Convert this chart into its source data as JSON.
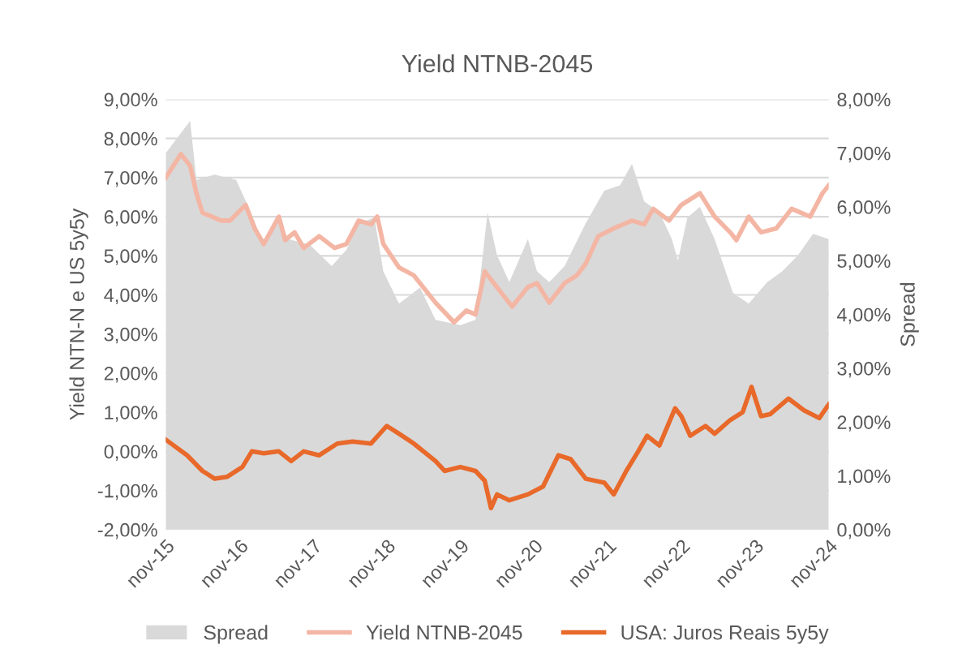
{
  "chart_data": {
    "type": "line",
    "title": "Yield NTNB-2045",
    "ylabel": "Yield NTN-N e US 5y5y",
    "y2label": "Spread",
    "xlim": [
      "2015-11-01",
      "2024-11-01"
    ],
    "xticks": [
      {
        "value": "2015-11-01",
        "label": "nov-15"
      },
      {
        "value": "2016-11-01",
        "label": "nov-16"
      },
      {
        "value": "2017-11-01",
        "label": "nov-17"
      },
      {
        "value": "2018-11-01",
        "label": "nov-18"
      },
      {
        "value": "2019-11-01",
        "label": "nov-19"
      },
      {
        "value": "2020-11-01",
        "label": "nov-20"
      },
      {
        "value": "2021-11-01",
        "label": "nov-21"
      },
      {
        "value": "2022-11-01",
        "label": "nov-22"
      },
      {
        "value": "2023-11-01",
        "label": "nov-23"
      },
      {
        "value": "2024-11-01",
        "label": "nov-24"
      }
    ],
    "ylim": [
      -2,
      9
    ],
    "yticks": [
      {
        "value": -2,
        "label": "-2,00%"
      },
      {
        "value": -1,
        "label": "-1,00%"
      },
      {
        "value": 0,
        "label": "0,00%"
      },
      {
        "value": 1,
        "label": "1,00%"
      },
      {
        "value": 2,
        "label": "2,00%"
      },
      {
        "value": 3,
        "label": "3,00%"
      },
      {
        "value": 4,
        "label": "4,00%"
      },
      {
        "value": 5,
        "label": "5,00%"
      },
      {
        "value": 6,
        "label": "6,00%"
      },
      {
        "value": 7,
        "label": "7,00%"
      },
      {
        "value": 8,
        "label": "8,00%"
      },
      {
        "value": 9,
        "label": "9,00%"
      }
    ],
    "y2lim": [
      0,
      8
    ],
    "y2ticks": [
      {
        "value": 0,
        "label": "0,00%"
      },
      {
        "value": 1,
        "label": "1,00%"
      },
      {
        "value": 2,
        "label": "2,00%"
      },
      {
        "value": 3,
        "label": "3,00%"
      },
      {
        "value": 4,
        "label": "4,00%"
      },
      {
        "value": 5,
        "label": "5,00%"
      },
      {
        "value": 6,
        "label": "6,00%"
      },
      {
        "value": 7,
        "label": "7,00%"
      },
      {
        "value": 8,
        "label": "8,00%"
      }
    ],
    "grid": "y",
    "legend": "bottom",
    "series": [
      {
        "name": "Spread",
        "type": "area",
        "axis": "y2",
        "color": "#d9d9d9",
        "x": [
          "2015-11-01",
          "2016-01-01",
          "2016-03-01",
          "2016-04-01",
          "2016-07-01",
          "2016-10-15",
          "2016-12-15",
          "2017-03-01",
          "2017-05-15",
          "2017-07-01",
          "2017-10-15",
          "2018-02-01",
          "2018-04-15",
          "2018-06-15",
          "2018-09-01",
          "2018-10-15",
          "2019-01-01",
          "2019-04-15",
          "2019-07-01",
          "2019-11-01",
          "2020-01-15",
          "2020-03-15",
          "2020-05-01",
          "2020-07-01",
          "2020-10-01",
          "2020-11-15",
          "2021-01-15",
          "2021-04-01",
          "2021-07-15",
          "2021-10-15",
          "2022-01-01",
          "2022-03-01",
          "2022-05-01",
          "2022-07-15",
          "2022-09-15",
          "2022-10-15",
          "2022-12-01",
          "2023-02-01",
          "2023-04-15",
          "2023-07-15",
          "2023-10-01",
          "2024-01-01",
          "2024-03-15",
          "2024-06-01",
          "2024-08-15",
          "2024-11-01"
        ],
        "values": [
          7.0,
          7.3,
          7.6,
          6.5,
          6.6,
          6.5,
          6.0,
          5.3,
          5.8,
          5.4,
          5.3,
          4.9,
          5.2,
          5.7,
          5.8,
          4.8,
          4.2,
          4.5,
          3.9,
          3.8,
          3.9,
          5.9,
          5.1,
          4.6,
          5.4,
          4.8,
          4.6,
          4.9,
          5.7,
          6.3,
          6.4,
          6.8,
          6.1,
          5.9,
          5.4,
          5.0,
          5.8,
          6.0,
          5.4,
          4.4,
          4.2,
          4.6,
          4.8,
          5.1,
          5.5,
          5.4
        ]
      },
      {
        "name": "Yield NTNB-2045",
        "color": "#f4b6a4",
        "x": [
          "2015-11-01",
          "2016-01-15",
          "2016-03-01",
          "2016-04-01",
          "2016-05-01",
          "2016-08-01",
          "2016-09-15",
          "2016-12-01",
          "2017-01-15",
          "2017-03-01",
          "2017-05-15",
          "2017-06-15",
          "2017-08-01",
          "2017-09-15",
          "2017-12-01",
          "2018-02-15",
          "2018-04-15",
          "2018-06-15",
          "2018-08-15",
          "2018-09-15",
          "2018-10-15",
          "2019-01-01",
          "2019-03-15",
          "2019-07-01",
          "2019-10-01",
          "2019-12-01",
          "2020-01-15",
          "2020-03-01",
          "2020-05-15",
          "2020-07-15",
          "2020-10-01",
          "2020-11-15",
          "2021-01-15",
          "2021-04-01",
          "2021-06-01",
          "2021-07-15",
          "2021-09-15",
          "2021-12-01",
          "2022-03-01",
          "2022-05-01",
          "2022-06-15",
          "2022-09-01",
          "2022-11-01",
          "2023-02-01",
          "2023-04-15",
          "2023-07-01",
          "2023-08-01",
          "2023-10-01",
          "2023-12-01",
          "2024-02-15",
          "2024-05-01",
          "2024-08-01",
          "2024-10-01",
          "2024-11-01"
        ],
        "values": [
          7.0,
          7.6,
          7.3,
          6.6,
          6.1,
          5.9,
          5.9,
          6.3,
          5.7,
          5.3,
          6.0,
          5.4,
          5.6,
          5.2,
          5.5,
          5.2,
          5.3,
          5.9,
          5.8,
          6.0,
          5.3,
          4.7,
          4.5,
          3.8,
          3.3,
          3.6,
          3.5,
          4.6,
          4.1,
          3.7,
          4.2,
          4.3,
          3.8,
          4.3,
          4.5,
          4.8,
          5.5,
          5.7,
          5.9,
          5.8,
          6.2,
          5.9,
          6.3,
          6.6,
          6.0,
          5.6,
          5.4,
          6.0,
          5.6,
          5.7,
          6.2,
          6.0,
          6.6,
          6.8
        ]
      },
      {
        "name": "USA: Juros Reais 5y5y",
        "color": "#e8692a",
        "x": [
          "2015-11-01",
          "2016-02-15",
          "2016-05-01",
          "2016-07-01",
          "2016-09-01",
          "2016-11-15",
          "2017-01-01",
          "2017-03-01",
          "2017-05-15",
          "2017-07-15",
          "2017-09-15",
          "2017-12-01",
          "2018-03-01",
          "2018-05-15",
          "2018-08-15",
          "2018-11-01",
          "2019-01-01",
          "2019-03-15",
          "2019-07-01",
          "2019-08-15",
          "2019-11-01",
          "2020-01-15",
          "2020-03-01",
          "2020-04-01",
          "2020-05-01",
          "2020-07-01",
          "2020-10-01",
          "2020-12-15",
          "2021-03-01",
          "2021-05-01",
          "2021-07-15",
          "2021-10-15",
          "2021-12-01",
          "2022-02-01",
          "2022-04-01",
          "2022-05-15",
          "2022-07-15",
          "2022-10-01",
          "2022-11-01",
          "2022-12-15",
          "2023-03-01",
          "2023-04-15",
          "2023-07-01",
          "2023-09-01",
          "2023-10-15",
          "2023-12-01",
          "2024-01-15",
          "2024-04-15",
          "2024-07-01",
          "2024-09-15",
          "2024-11-01"
        ],
        "values": [
          0.3,
          -0.1,
          -0.5,
          -0.7,
          -0.65,
          -0.4,
          0.0,
          -0.05,
          0.0,
          -0.25,
          0.0,
          -0.1,
          0.2,
          0.25,
          0.2,
          0.65,
          0.45,
          0.2,
          -0.25,
          -0.5,
          -0.4,
          -0.5,
          -0.75,
          -1.45,
          -1.1,
          -1.25,
          -1.1,
          -0.9,
          -0.1,
          -0.2,
          -0.7,
          -0.8,
          -1.1,
          -0.5,
          0.0,
          0.4,
          0.15,
          1.1,
          0.9,
          0.4,
          0.65,
          0.45,
          0.8,
          1.0,
          1.65,
          0.9,
          0.95,
          1.35,
          1.05,
          0.85,
          1.2
        ]
      }
    ]
  }
}
